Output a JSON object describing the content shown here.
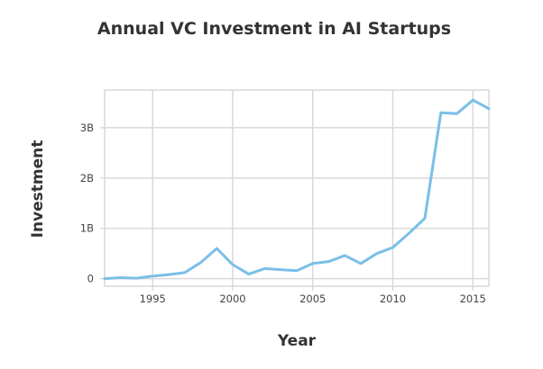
{
  "chart_data": {
    "type": "line",
    "title": "Annual VC Investment in AI Startups",
    "xlabel": "Year",
    "ylabel": "Investment",
    "xlim": [
      1992,
      2016
    ],
    "ylim": [
      -0.15,
      3.75
    ],
    "x_ticks": [
      1995,
      2000,
      2005,
      2010,
      2015
    ],
    "x_tick_labels": [
      "1995",
      "2000",
      "2005",
      "2010",
      "2015"
    ],
    "y_ticks": [
      0,
      1,
      2,
      3
    ],
    "y_tick_labels": [
      "0",
      "1B",
      "2B",
      "3B"
    ],
    "grid": true,
    "legend": "none",
    "line_color": "#7bbfe8",
    "grid_color": "#d9d9d9",
    "series": [
      {
        "x": [
          1992,
          1993,
          1994,
          1995,
          1996,
          1997,
          1998,
          1999,
          2000,
          2001,
          2002,
          2003,
          2004,
          2005,
          2006,
          2007,
          2008,
          2009,
          2010,
          2011,
          2012,
          2013,
          2014,
          2015,
          2016
        ],
        "values": [
          0.0,
          0.02,
          0.01,
          0.05,
          0.08,
          0.12,
          0.32,
          0.6,
          0.28,
          0.09,
          0.2,
          0.18,
          0.16,
          0.3,
          0.34,
          0.46,
          0.3,
          0.5,
          0.62,
          0.9,
          1.2,
          3.3,
          3.28,
          3.55,
          3.38
        ]
      }
    ]
  }
}
